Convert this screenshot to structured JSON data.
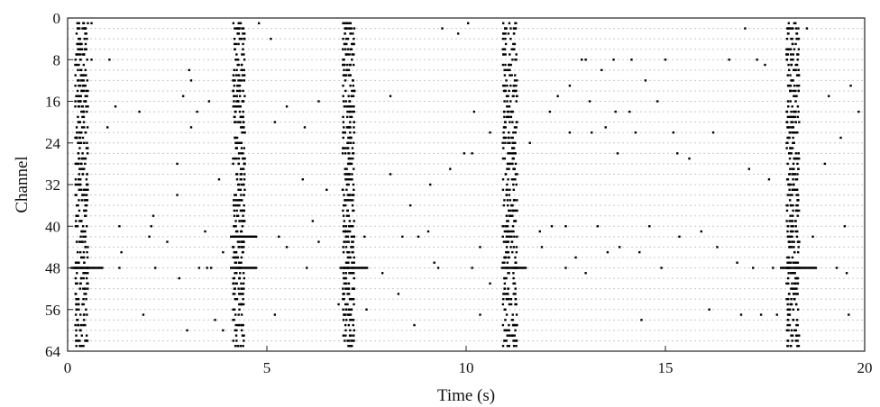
{
  "chart_data": {
    "type": "scatter",
    "title": "",
    "xlabel": "Time (s)",
    "ylabel": "Channel",
    "xlim": [
      0,
      20
    ],
    "ylim": [
      64,
      0
    ],
    "y_inverted": true,
    "x_ticks": [
      0,
      5,
      10,
      15,
      20
    ],
    "y_ticks": [
      0,
      8,
      16,
      24,
      32,
      40,
      48,
      56,
      64
    ],
    "grid": "horizontal dotted at every 2 channels",
    "legend": "none",
    "marker_color": "#000000",
    "bursts": [
      {
        "center": 0.35,
        "width": 0.32
      },
      {
        "center": 4.3,
        "width": 0.3
      },
      {
        "center": 7.05,
        "width": 0.3
      },
      {
        "center": 11.1,
        "width": 0.36
      },
      {
        "center": 18.2,
        "width": 0.32
      }
    ],
    "burst_channel_range": [
      1,
      63
    ],
    "long_bursts": [
      {
        "x_start": 0.1,
        "x_end": 0.9,
        "channel": 48
      },
      {
        "x_start": 4.1,
        "x_end": 4.75,
        "channel": 42
      },
      {
        "x_start": 4.1,
        "x_end": 4.75,
        "channel": 48
      },
      {
        "x_start": 6.85,
        "x_end": 7.55,
        "channel": 48
      },
      {
        "x_start": 10.9,
        "x_end": 11.5,
        "channel": 48
      },
      {
        "x_start": 17.9,
        "x_end": 18.8,
        "channel": 48
      }
    ],
    "isolated_spikes": [
      [
        0.6,
        1
      ],
      [
        0.6,
        8
      ],
      [
        1.05,
        8
      ],
      [
        1.2,
        17
      ],
      [
        1.0,
        21
      ],
      [
        1.3,
        40
      ],
      [
        1.35,
        45
      ],
      [
        1.3,
        48
      ],
      [
        1.8,
        18
      ],
      [
        1.9,
        57
      ],
      [
        2.1,
        40
      ],
      [
        2.15,
        38
      ],
      [
        2.05,
        42
      ],
      [
        2.2,
        48
      ],
      [
        2.5,
        43
      ],
      [
        2.75,
        28
      ],
      [
        2.75,
        34
      ],
      [
        2.8,
        50
      ],
      [
        2.9,
        15
      ],
      [
        3.0,
        60
      ],
      [
        3.05,
        10
      ],
      [
        3.1,
        12
      ],
      [
        3.1,
        21
      ],
      [
        3.25,
        18
      ],
      [
        3.3,
        48
      ],
      [
        3.45,
        41
      ],
      [
        3.5,
        48
      ],
      [
        3.55,
        16
      ],
      [
        3.6,
        48
      ],
      [
        3.7,
        58
      ],
      [
        3.8,
        31
      ],
      [
        3.9,
        45
      ],
      [
        3.9,
        60
      ],
      [
        4.8,
        1
      ],
      [
        5.1,
        4
      ],
      [
        5.2,
        20
      ],
      [
        5.2,
        57
      ],
      [
        5.3,
        42
      ],
      [
        5.5,
        44
      ],
      [
        5.5,
        17
      ],
      [
        5.9,
        31
      ],
      [
        5.95,
        21
      ],
      [
        6.0,
        48
      ],
      [
        6.15,
        39
      ],
      [
        6.3,
        43
      ],
      [
        6.3,
        16
      ],
      [
        6.5,
        33
      ],
      [
        6.8,
        55
      ],
      [
        7.45,
        42
      ],
      [
        7.5,
        56
      ],
      [
        7.9,
        49
      ],
      [
        8.1,
        15
      ],
      [
        8.1,
        30
      ],
      [
        8.3,
        53
      ],
      [
        8.4,
        42
      ],
      [
        8.6,
        36
      ],
      [
        8.7,
        59
      ],
      [
        8.8,
        42
      ],
      [
        9.05,
        41
      ],
      [
        9.1,
        32
      ],
      [
        9.2,
        47
      ],
      [
        9.3,
        48
      ],
      [
        9.4,
        2
      ],
      [
        9.6,
        29
      ],
      [
        9.8,
        3
      ],
      [
        9.95,
        26
      ],
      [
        10.05,
        1
      ],
      [
        10.15,
        26
      ],
      [
        10.15,
        48
      ],
      [
        10.2,
        18
      ],
      [
        10.35,
        44
      ],
      [
        10.35,
        57
      ],
      [
        10.6,
        22
      ],
      [
        10.6,
        51
      ],
      [
        11.6,
        24
      ],
      [
        11.85,
        41
      ],
      [
        11.9,
        44
      ],
      [
        12.1,
        18
      ],
      [
        12.15,
        40
      ],
      [
        12.3,
        15
      ],
      [
        12.5,
        40
      ],
      [
        12.5,
        48
      ],
      [
        12.6,
        13
      ],
      [
        12.6,
        22
      ],
      [
        12.75,
        46
      ],
      [
        12.9,
        8
      ],
      [
        13.0,
        8
      ],
      [
        13.0,
        49
      ],
      [
        13.1,
        16
      ],
      [
        13.15,
        22
      ],
      [
        13.3,
        40
      ],
      [
        13.4,
        10
      ],
      [
        13.5,
        21
      ],
      [
        13.55,
        45
      ],
      [
        13.7,
        8
      ],
      [
        13.75,
        18
      ],
      [
        13.8,
        26
      ],
      [
        13.85,
        44
      ],
      [
        14.1,
        18
      ],
      [
        14.15,
        8
      ],
      [
        14.25,
        22
      ],
      [
        14.35,
        45
      ],
      [
        14.4,
        58
      ],
      [
        14.5,
        12
      ],
      [
        14.6,
        40
      ],
      [
        14.8,
        16
      ],
      [
        14.9,
        48
      ],
      [
        15.0,
        8
      ],
      [
        15.2,
        22
      ],
      [
        15.3,
        26
      ],
      [
        15.35,
        42
      ],
      [
        15.6,
        27
      ],
      [
        15.9,
        41
      ],
      [
        16.1,
        56
      ],
      [
        16.2,
        22
      ],
      [
        16.3,
        44
      ],
      [
        16.6,
        8
      ],
      [
        16.8,
        47
      ],
      [
        16.9,
        57
      ],
      [
        17.0,
        2
      ],
      [
        17.1,
        29
      ],
      [
        17.2,
        48
      ],
      [
        17.3,
        8
      ],
      [
        17.4,
        57
      ],
      [
        17.5,
        9
      ],
      [
        17.6,
        31
      ],
      [
        17.7,
        48
      ],
      [
        17.8,
        57
      ],
      [
        18.55,
        2
      ],
      [
        18.7,
        42
      ],
      [
        19.0,
        28
      ],
      [
        19.1,
        15
      ],
      [
        19.3,
        48
      ],
      [
        19.4,
        23
      ],
      [
        19.5,
        40
      ],
      [
        19.55,
        49
      ],
      [
        19.6,
        57
      ],
      [
        19.65,
        13
      ],
      [
        19.85,
        18
      ]
    ]
  }
}
